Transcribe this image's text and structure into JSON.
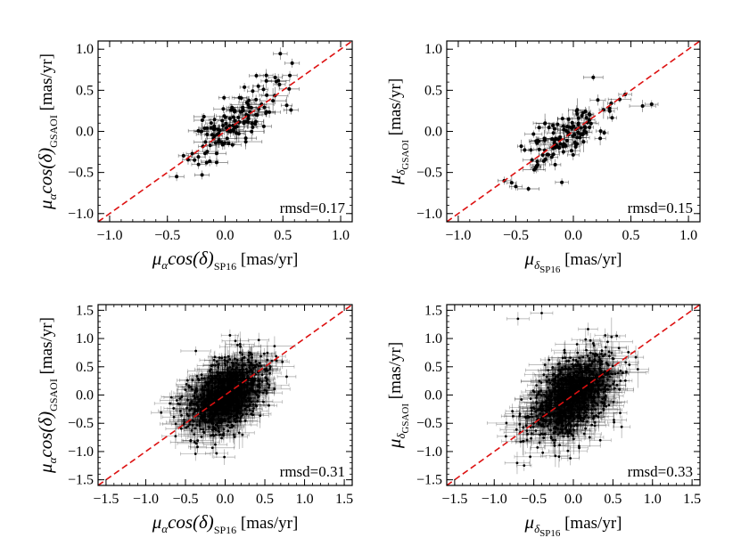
{
  "colors": {
    "identity_line": "#dd1111",
    "points": "#000000",
    "frame": "#000000",
    "background": "#ffffff"
  },
  "chart_data": [
    {
      "type": "scatter",
      "panel": "top-left",
      "xlabel": "μαcos(δ)SP16 [mas/yr]",
      "ylabel": "μαcos(δ)GSAOI [mas/yr]",
      "xlabel_parts": {
        "main": "μ",
        "sub1": "α",
        "mid": "cos(δ)",
        "sub2": "SP16",
        "unit": "[mas/yr]"
      },
      "ylabel_parts": {
        "main": "μ",
        "sub1": "α",
        "mid": "cos(δ)",
        "sub2": "GSAOI",
        "unit": "[mas/yr]"
      },
      "xlim": [
        -1.1,
        1.1
      ],
      "ylim": [
        -1.1,
        1.1
      ],
      "xticks": [
        -1.0,
        -0.5,
        0.0,
        0.5,
        1.0
      ],
      "yticks": [
        -1.0,
        -0.5,
        0.0,
        0.5,
        1.0
      ],
      "xtick_labels": [
        "−1.0",
        "−0.5",
        "0.0",
        "0.5",
        "1.0"
      ],
      "ytick_labels": [
        "−1.0",
        "−0.5",
        "0.0",
        "0.5",
        "1.0"
      ],
      "annotation": "rmsd=0.17",
      "n_points": 130,
      "slope": 0.85,
      "intercept": 0.03,
      "x_center": 0.05,
      "x_sd": 0.18,
      "scatter": 0.17,
      "err": 0.09,
      "seed": 11,
      "outliers": [
        [
          0.58,
          0.83
        ],
        [
          0.56,
          0.68
        ],
        [
          0.57,
          0.26
        ],
        [
          0.36,
          0.44
        ],
        [
          -0.42,
          -0.55
        ],
        [
          -0.2,
          -0.53
        ]
      ]
    },
    {
      "type": "scatter",
      "panel": "top-right",
      "xlabel": "μδSP16 [mas/yr]",
      "ylabel": "μδGSAOI [mas/yr]",
      "xlabel_parts": {
        "main": "μ",
        "sub1": "δ",
        "mid": "",
        "sub2": "SP16",
        "unit": "[mas/yr]"
      },
      "ylabel_parts": {
        "main": "μ",
        "sub1": "δ",
        "mid": "",
        "sub2": "GSAOI",
        "unit": "[mas/yr]"
      },
      "xlim": [
        -1.1,
        1.1
      ],
      "ylim": [
        -1.1,
        1.1
      ],
      "xticks": [
        -1.0,
        -0.5,
        0.0,
        0.5,
        1.0
      ],
      "yticks": [
        -1.0,
        -0.5,
        0.0,
        0.5,
        1.0
      ],
      "xtick_labels": [
        "−1.0",
        "−0.5",
        "0.0",
        "0.5",
        "1.0"
      ],
      "ytick_labels": [
        "−1.0",
        "−0.5",
        "0.0",
        "0.5",
        "1.0"
      ],
      "annotation": "rmsd=0.15",
      "n_points": 120,
      "slope": 0.9,
      "intercept": 0.01,
      "x_center": -0.08,
      "x_sd": 0.2,
      "scatter": 0.15,
      "err": 0.08,
      "seed": 23,
      "outliers": [
        [
          0.68,
          0.33
        ],
        [
          0.45,
          0.45
        ],
        [
          -0.1,
          -0.62
        ],
        [
          -0.6,
          -0.6
        ],
        [
          -0.5,
          -0.67
        ]
      ]
    },
    {
      "type": "scatter",
      "panel": "bottom-left",
      "xlabel": "μαcos(δ)SP16 [mas/yr]",
      "ylabel": "μαcos(δ)GSAOI [mas/yr]",
      "xlabel_parts": {
        "main": "μ",
        "sub1": "α",
        "mid": "cos(δ)",
        "sub2": "SP16",
        "unit": "[mas/yr]"
      },
      "ylabel_parts": {
        "main": "μ",
        "sub1": "α",
        "mid": "cos(δ)",
        "sub2": "GSAOI",
        "unit": "[mas/yr]"
      },
      "xlim": [
        -1.6,
        1.6
      ],
      "ylim": [
        -1.6,
        1.6
      ],
      "xticks": [
        -1.5,
        -1.0,
        -0.5,
        0.0,
        0.5,
        1.0,
        1.5
      ],
      "yticks": [
        -1.5,
        -1.0,
        -0.5,
        0.0,
        0.5,
        1.0,
        1.5
      ],
      "xtick_labels": [
        "−1.5",
        "−1.0",
        "−0.5",
        "0.0",
        "0.5",
        "1.0",
        "1.5"
      ],
      "ytick_labels": [
        "−1.5",
        "−1.0",
        "−0.5",
        "0.0",
        "0.5",
        "1.0",
        "1.5"
      ],
      "annotation": "rmsd=0.31",
      "n_points": 1100,
      "slope": 0.65,
      "intercept": 0.0,
      "x_center": 0.0,
      "x_sd": 0.24,
      "scatter": 0.3,
      "err": 0.2,
      "seed": 37,
      "outliers": []
    },
    {
      "type": "scatter",
      "panel": "bottom-right",
      "xlabel": "μδSP16 [mas/yr]",
      "ylabel": "μδGSAOI [mas/yr]",
      "xlabel_parts": {
        "main": "μ",
        "sub1": "δ",
        "mid": "",
        "sub2": "SP16",
        "unit": "[mas/yr]"
      },
      "ylabel_parts": {
        "main": "μ",
        "sub1": "δ",
        "mid": "",
        "sub2": "GSAOI",
        "unit": "[mas/yr]"
      },
      "xlim": [
        -1.6,
        1.6
      ],
      "ylim": [
        -1.6,
        1.6
      ],
      "xticks": [
        -1.5,
        -1.0,
        -0.5,
        0.0,
        0.5,
        1.0,
        1.5
      ],
      "yticks": [
        -1.5,
        -1.0,
        -0.5,
        0.0,
        0.5,
        1.0,
        1.5
      ],
      "xtick_labels": [
        "−1.5",
        "−1.0",
        "−0.5",
        "0.0",
        "0.5",
        "1.0",
        "1.5"
      ],
      "ytick_labels": [
        "−1.5",
        "−1.0",
        "−0.5",
        "0.0",
        "0.5",
        "1.0",
        "1.5"
      ],
      "annotation": "rmsd=0.33",
      "n_points": 1100,
      "slope": 0.7,
      "intercept": 0.0,
      "x_center": 0.0,
      "x_sd": 0.25,
      "scatter": 0.32,
      "err": 0.2,
      "seed": 53,
      "outliers": [
        [
          -0.7,
          1.35
        ],
        [
          -0.4,
          1.45
        ]
      ]
    }
  ]
}
